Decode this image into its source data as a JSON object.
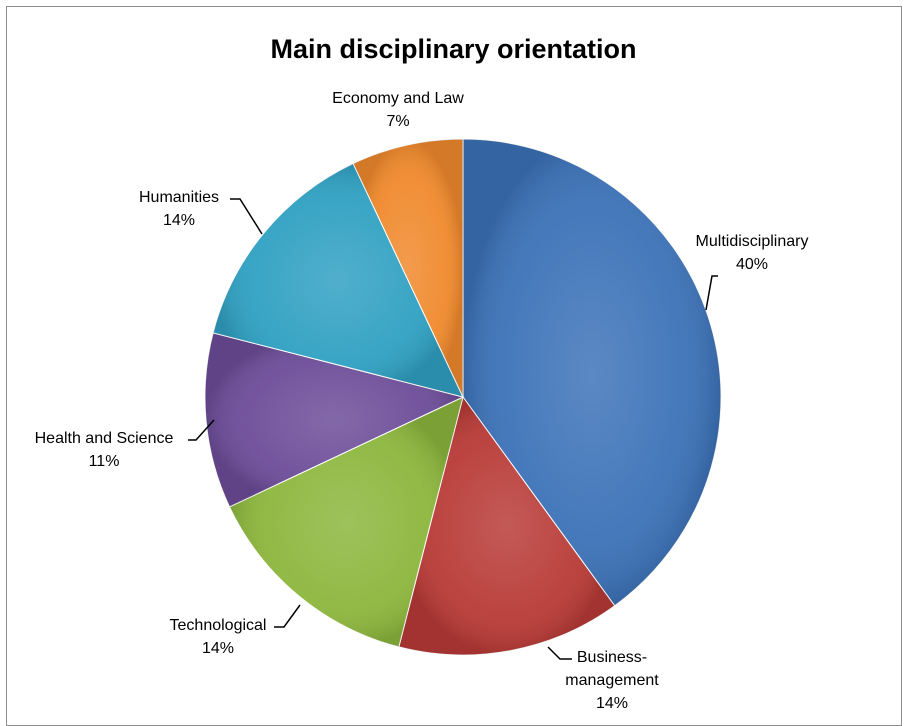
{
  "chart_data": {
    "type": "pie",
    "title": "Main disciplinary orientation",
    "slices": [
      {
        "label": "Multidisciplinary",
        "pct_label": "40%",
        "value": 40,
        "color": "#3c72b8"
      },
      {
        "label": "Business-management",
        "label_lines": [
          "Business-",
          "management"
        ],
        "pct_label": "14%",
        "value": 14,
        "color": "#b83a36"
      },
      {
        "label": "Technological",
        "pct_label": "14%",
        "value": 14,
        "color": "#8cb63c"
      },
      {
        "label": "Health and Science",
        "pct_label": "11%",
        "value": 11,
        "color": "#6c4c98"
      },
      {
        "label": "Humanities",
        "pct_label": "14%",
        "value": 14,
        "color": "#2fa0c2"
      },
      {
        "label": "Economy and Law",
        "pct_label": "7%",
        "value": 7,
        "color": "#f0892c"
      }
    ],
    "legend": "none"
  }
}
